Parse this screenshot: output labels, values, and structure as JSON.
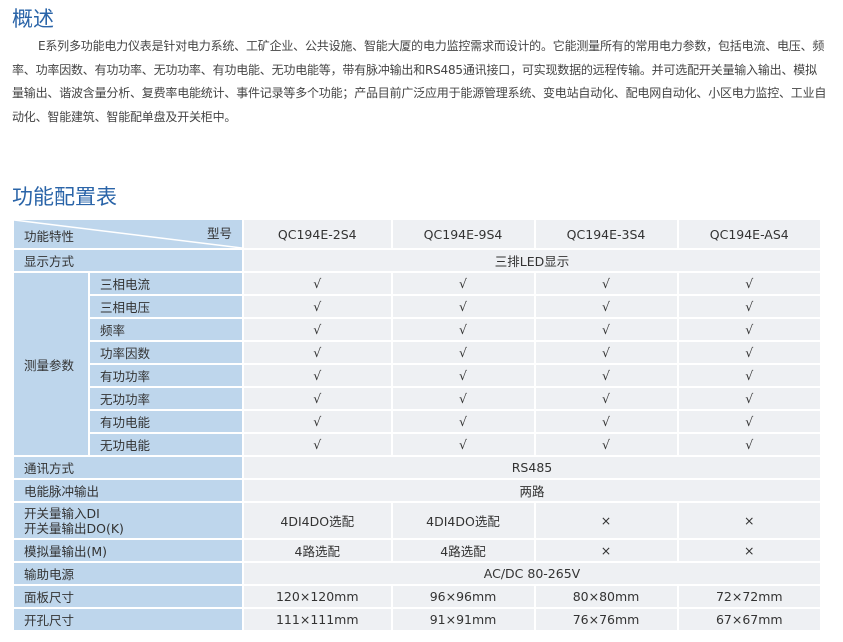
{
  "overview": {
    "title": "概述",
    "text": "E系列多功能电力仪表是针对电力系统、工矿企业、公共设施、智能大厦的电力监控需求而设计的。它能测量所有的常用电力参数，包括电流、电压、频率、功率因数、有功功率、无功功率、有功电能、无功电能等，带有脉冲输出和RS485通讯接口，可实现数据的远程传输。并可选配开关量输入输出、模拟量输出、谐波含量分析、复费率电能统计、事件记录等多个功能；产品目前广泛应用于能源管理系统、变电站自动化、配电网自动化、小区电力监控、工业自动化、智能建筑、智能配单盘及开关柜中。"
  },
  "table": {
    "title": "功能配置表",
    "corner_top": "型号",
    "corner_bottom": "功能特性",
    "models": [
      "QC194E-2S4",
      "QC194E-9S4",
      "QC194E-3S4",
      "QC194E-AS4"
    ],
    "display": {
      "label": "显示方式",
      "value": "三排LED显示"
    },
    "measure": {
      "label": "测量参数",
      "check": "√",
      "items": [
        "三相电流",
        "三相电压",
        "频率",
        "功率因数",
        "有功功率",
        "无功功率",
        "有功电能",
        "无功电能"
      ]
    },
    "comm": {
      "label": "通讯方式",
      "value": "RS485"
    },
    "pulse": {
      "label": "电能脉冲输出",
      "value": "两路"
    },
    "di": {
      "label1": "开关量输入DI",
      "label2": "开关量输出DO(K)",
      "values": [
        "4DI4DO选配",
        "4DI4DO选配",
        "×",
        "×"
      ]
    },
    "analog": {
      "label": "模拟量输出(M)",
      "values": [
        "4路选配",
        "4路选配",
        "×",
        "×"
      ]
    },
    "power": {
      "label": "输助电源",
      "value": "AC/DC 80-265V"
    },
    "panel": {
      "label": "面板尺寸",
      "values": [
        "120×120mm",
        "96×96mm",
        "80×80mm",
        "72×72mm"
      ]
    },
    "hole": {
      "label": "开孔尺寸",
      "values": [
        "111×111mm",
        "91×91mm",
        "76×76mm",
        "67×67mm"
      ]
    }
  }
}
